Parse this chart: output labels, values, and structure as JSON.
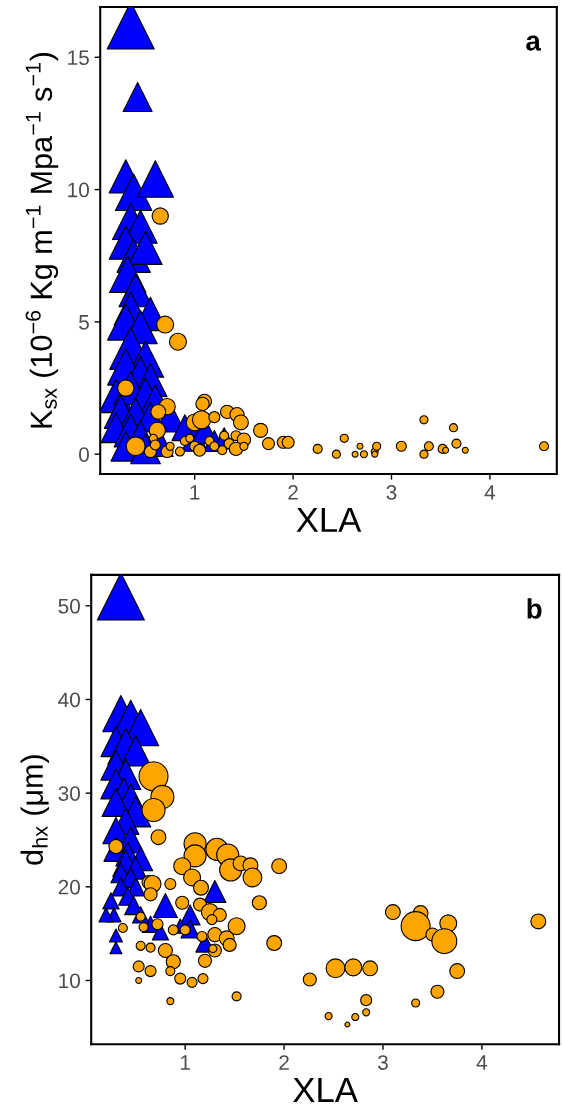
{
  "chart_data": [
    {
      "type": "bubble",
      "title": "a",
      "xlabel": "XLA",
      "ylabel": "K$_{sx}$ (10$^{−6}$ Kg m$^{−1}$ Mpa$^{−1}$ s$^{−1}$)",
      "xlim": [
        0.04,
        4.68
      ],
      "ylim": [
        -0.75,
        16.9
      ],
      "xticks": [
        1,
        2,
        3,
        4
      ],
      "yticks": [
        0,
        5,
        10,
        15
      ],
      "grid": false,
      "legend": false,
      "series": [
        {
          "color": "#0000ff",
          "marker": "triangle",
          "x": [
            0.35,
            0.42,
            0.3,
            0.38,
            0.6,
            0.35,
            0.45,
            0.3,
            0.38,
            0.5,
            0.32,
            0.4,
            0.35,
            0.55,
            0.3,
            0.45,
            0.35,
            0.5,
            0.3,
            0.45,
            0.55,
            0.2,
            0.35,
            0.5,
            0.6,
            0.25,
            0.4,
            0.55,
            0.2,
            0.35,
            0.45,
            0.3,
            0.5,
            0.75,
            0.9,
            1.0,
            1.1,
            1.2,
            1.3,
            0.65
          ],
          "values": [
            16.2,
            13.5,
            10.5,
            9.9,
            10.4,
            8.8,
            8.6,
            8.0,
            7.5,
            7.8,
            6.8,
            6.2,
            5.5,
            5.3,
            5.0,
            4.8,
            4.0,
            3.6,
            3.3,
            3.0,
            2.8,
            2.2,
            2.5,
            2.2,
            2.0,
            1.6,
            1.5,
            1.4,
            1.0,
            0.9,
            0.7,
            0.3,
            0.2,
            1.4,
            1.0,
            0.6,
            0.9,
            0.5,
            0.6,
            0.4
          ],
          "sizes": [
            1.0,
            0.38,
            0.5,
            0.6,
            0.6,
            0.6,
            0.5,
            0.5,
            0.5,
            0.5,
            0.6,
            0.5,
            0.5,
            0.5,
            0.6,
            0.5,
            0.8,
            0.6,
            0.6,
            0.6,
            0.5,
            0.5,
            0.5,
            0.6,
            0.5,
            0.5,
            0.5,
            0.4,
            0.4,
            0.5,
            0.4,
            0.4,
            0.4,
            0.4,
            0.3,
            0.3,
            0.3,
            0.2,
            0.2,
            0.3
          ]
        },
        {
          "color": "#ffa500",
          "marker": "circle",
          "x": [
            0.65,
            0.7,
            0.83,
            0.3,
            1.1,
            1.08,
            0.72,
            0.63,
            1.33,
            1.43,
            1.0,
            1.07,
            1.2,
            1.47,
            1.67,
            0.62,
            0.4,
            0.58,
            0.55,
            0.6,
            0.72,
            0.75,
            0.85,
            0.9,
            0.95,
            1.0,
            1.05,
            1.15,
            1.2,
            1.28,
            1.3,
            1.35,
            1.42,
            1.5,
            1.42,
            1.5,
            1.75,
            1.9,
            1.95,
            2.25,
            2.44,
            2.52,
            2.63,
            2.68,
            2.72,
            2.83,
            2.83,
            2.85,
            3.1,
            3.33,
            3.33,
            3.38,
            3.52,
            3.55,
            3.63,
            3.66,
            3.75,
            4.55
          ],
          "values": [
            9.0,
            4.9,
            4.25,
            2.5,
            2.0,
            1.9,
            1.8,
            1.6,
            1.6,
            1.5,
            1.2,
            1.3,
            1.4,
            1.2,
            0.9,
            0.9,
            0.3,
            0.6,
            0.1,
            0.35,
            0.1,
            0.3,
            0.1,
            0.5,
            0.6,
            0.3,
            0.15,
            0.5,
            0.3,
            0.15,
            0.7,
            0.4,
            0.7,
            0.55,
            0.2,
            0.3,
            0.4,
            0.45,
            0.45,
            0.2,
            0.0,
            0.6,
            0.0,
            0.3,
            0.0,
            0.1,
            0.0,
            0.3,
            0.3,
            1.3,
            0.0,
            0.3,
            0.2,
            0.15,
            1.0,
            0.4,
            0.15,
            0.3
          ],
          "sizes": [
            0.188,
            0.204,
            0.204,
            0.188,
            0.141,
            0.126,
            0.188,
            0.157,
            0.126,
            0.141,
            0.204,
            0.236,
            0.086,
            0.157,
            0.141,
            0.188,
            0.251,
            0.047,
            0.102,
            0.071,
            0.102,
            0.047,
            0.058,
            0.058,
            0.047,
            0.071,
            0.102,
            0.058,
            0.058,
            0.058,
            0.058,
            0.071,
            0.071,
            0.126,
            0.126,
            0.047,
            0.102,
            0.102,
            0.102,
            0.058,
            0.047,
            0.047,
            0.025,
            0.025,
            0.035,
            0.035,
            0.025,
            0.047,
            0.071,
            0.047,
            0.047,
            0.058,
            0.058,
            0.025,
            0.047,
            0.058,
            0.025,
            0.058
          ]
        }
      ]
    },
    {
      "type": "bubble",
      "title": "b",
      "xlabel": "XLA",
      "ylabel": "d$_{hx}$ (μm)",
      "xlim": [
        0.05,
        4.78
      ],
      "ylim": [
        3.2,
        53.3
      ],
      "xticks": [
        1,
        2,
        3,
        4
      ],
      "yticks": [
        10,
        20,
        30,
        40,
        50
      ],
      "grid": false,
      "legend": false,
      "series": [
        {
          "color": "#0000ff",
          "marker": "triangle",
          "x": [
            0.35,
            0.35,
            0.45,
            0.55,
            0.3,
            0.4,
            0.5,
            0.3,
            0.4,
            0.3,
            0.38,
            0.45,
            0.3,
            0.5,
            0.4,
            0.3,
            0.45,
            0.3,
            0.42,
            0.55,
            0.4,
            0.5,
            0.35,
            0.45,
            0.35,
            0.5,
            0.42,
            0.48,
            0.25,
            0.28,
            0.3,
            0.3,
            0.2,
            0.8,
            1.05,
            1.05,
            1.2,
            1.3,
            0.65,
            0.75,
            0.95,
            0.55
          ],
          "values": [
            51,
            38.5,
            38,
            37,
            35.5,
            35,
            34.5,
            33,
            32,
            31,
            30,
            29.5,
            29,
            28,
            27,
            26,
            25,
            24,
            23.5,
            23,
            22.5,
            22,
            21.5,
            21,
            20,
            20,
            19,
            18,
            18.5,
            17,
            14.8,
            13.5,
            17,
            18,
            17,
            15.5,
            14,
            19.5,
            16,
            15.2,
            15.8,
            17
          ],
          "sizes": [
            1.0,
            0.59,
            0.59,
            0.59,
            0.41,
            0.59,
            0.41,
            0.41,
            0.41,
            0.41,
            0.41,
            0.35,
            0.35,
            0.41,
            0.31,
            0.31,
            0.31,
            0.26,
            0.26,
            0.26,
            0.31,
            0.22,
            0.18,
            0.18,
            0.15,
            0.15,
            0.15,
            0.15,
            0.12,
            0.09,
            0.077,
            0.065,
            0.09,
            0.26,
            0.18,
            0.15,
            0.15,
            0.22,
            0.12,
            0.12,
            0.09,
            0.12
          ]
        },
        {
          "color": "#ffa500",
          "marker": "circle",
          "x": [
            0.68,
            0.77,
            0.68,
            0.73,
            0.3,
            1.1,
            1.1,
            1.32,
            1.43,
            0.97,
            1.07,
            1.16,
            1.46,
            1.56,
            1.66,
            1.68,
            1.95,
            0.63,
            0.67,
            0.65,
            0.85,
            1.75,
            0.97,
            1.15,
            1.25,
            1.35,
            1.27,
            0.55,
            0.72,
            0.58,
            0.37,
            0.88,
            1.0,
            1.52,
            1.17,
            1.3,
            1.42,
            1.45,
            1.3,
            1.9,
            0.55,
            0.65,
            0.8,
            1.28,
            0.88,
            1.2,
            0.53,
            0.65,
            0.85,
            0.95,
            1.07,
            1.18,
            0.53,
            0.85,
            1.52,
            2.26,
            2.52,
            2.7,
            2.87,
            2.45,
            2.64,
            2.72,
            2.83,
            2.83,
            3.1,
            3.38,
            3.33,
            3.5,
            3.66,
            3.62,
            3.75,
            3.55,
            3.33,
            4.57
          ],
          "values": [
            31.8,
            29.6,
            28.2,
            25.3,
            24.3,
            24.6,
            23.3,
            24.0,
            23.4,
            22.2,
            21.0,
            19.9,
            21.8,
            22.5,
            22.3,
            21.0,
            22.2,
            20.5,
            20.3,
            19.2,
            20.3,
            18.3,
            18.3,
            18.1,
            17.3,
            17.0,
            16.5,
            16.8,
            16.0,
            15.7,
            15.6,
            15.4,
            15.4,
            15.8,
            14.7,
            14.9,
            14.5,
            13.8,
            13.2,
            14.0,
            13.7,
            13.5,
            13.2,
            13.4,
            12.0,
            12.1,
            11.5,
            11.0,
            11.0,
            10.2,
            9.8,
            10.2,
            10.0,
            7.8,
            8.3,
            10.1,
            11.3,
            11.4,
            11.3,
            6.2,
            5.3,
            6.1,
            7.9,
            6.6,
            17.3,
            17.2,
            15.8,
            14.9,
            16.1,
            14.2,
            11.0,
            8.8,
            7.6,
            16.3
          ],
          "sizes": [
            0.597,
            0.377,
            0.377,
            0.157,
            0.141,
            0.346,
            0.346,
            0.346,
            0.346,
            0.204,
            0.204,
            0.157,
            0.346,
            0.157,
            0.157,
            0.251,
            0.157,
            0.121,
            0.204,
            0.121,
            0.086,
            0.141,
            0.121,
            0.121,
            0.204,
            0.121,
            0.071,
            0.058,
            0.086,
            0.058,
            0.058,
            0.071,
            0.071,
            0.204,
            0.071,
            0.141,
            0.157,
            0.121,
            0.121,
            0.157,
            0.058,
            0.058,
            0.141,
            0.046,
            0.141,
            0.121,
            0.086,
            0.086,
            0.058,
            0.086,
            0.071,
            0.071,
            0.025,
            0.035,
            0.058,
            0.121,
            0.251,
            0.204,
            0.157,
            0.035,
            0.017,
            0.035,
            0.086,
            0.035,
            0.157,
            0.157,
            0.597,
            0.121,
            0.204,
            0.44,
            0.157,
            0.121,
            0.046,
            0.157
          ]
        }
      ]
    }
  ]
}
